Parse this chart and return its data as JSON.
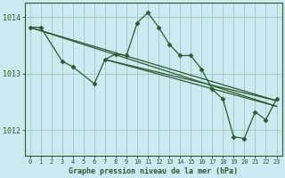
{
  "background_color": "#cce8f0",
  "grid_color": "#99ccbb",
  "line_color": "#2d5a2d",
  "ylim": [
    1011.55,
    1014.25
  ],
  "xlim": [
    -0.5,
    23.5
  ],
  "yticks": [
    1012,
    1013,
    1014
  ],
  "xticks": [
    0,
    1,
    2,
    3,
    4,
    5,
    6,
    7,
    8,
    9,
    10,
    11,
    12,
    13,
    14,
    15,
    16,
    17,
    18,
    19,
    20,
    21,
    22,
    23
  ],
  "xlabel": "Graphe pression niveau de la mer (hPa)",
  "trend_lines": [
    {
      "x0": 0,
      "y0": 1013.82,
      "x1": 23,
      "y1": 1012.52
    },
    {
      "x0": 0,
      "y0": 1013.82,
      "x1": 23,
      "y1": 1012.42
    },
    {
      "x0": 7,
      "y0": 1013.25,
      "x1": 23,
      "y1": 1012.52
    },
    {
      "x0": 7,
      "y0": 1013.25,
      "x1": 23,
      "y1": 1012.42
    }
  ],
  "series_marked": [
    {
      "x": [
        0,
        1,
        3,
        4,
        6,
        7,
        8,
        9,
        10,
        11,
        12,
        13,
        14,
        15,
        16,
        17,
        18,
        19,
        20,
        21,
        22,
        23
      ],
      "y": [
        1013.82,
        1013.82,
        1013.22,
        1013.12,
        1012.82,
        1013.25,
        1013.35,
        1013.32,
        1013.9,
        1014.08,
        1013.82,
        1013.52,
        1013.32,
        1013.32,
        1013.08,
        1012.72,
        1012.55,
        1011.88,
        1011.85,
        1012.32,
        1012.18,
        1012.55
      ]
    }
  ]
}
